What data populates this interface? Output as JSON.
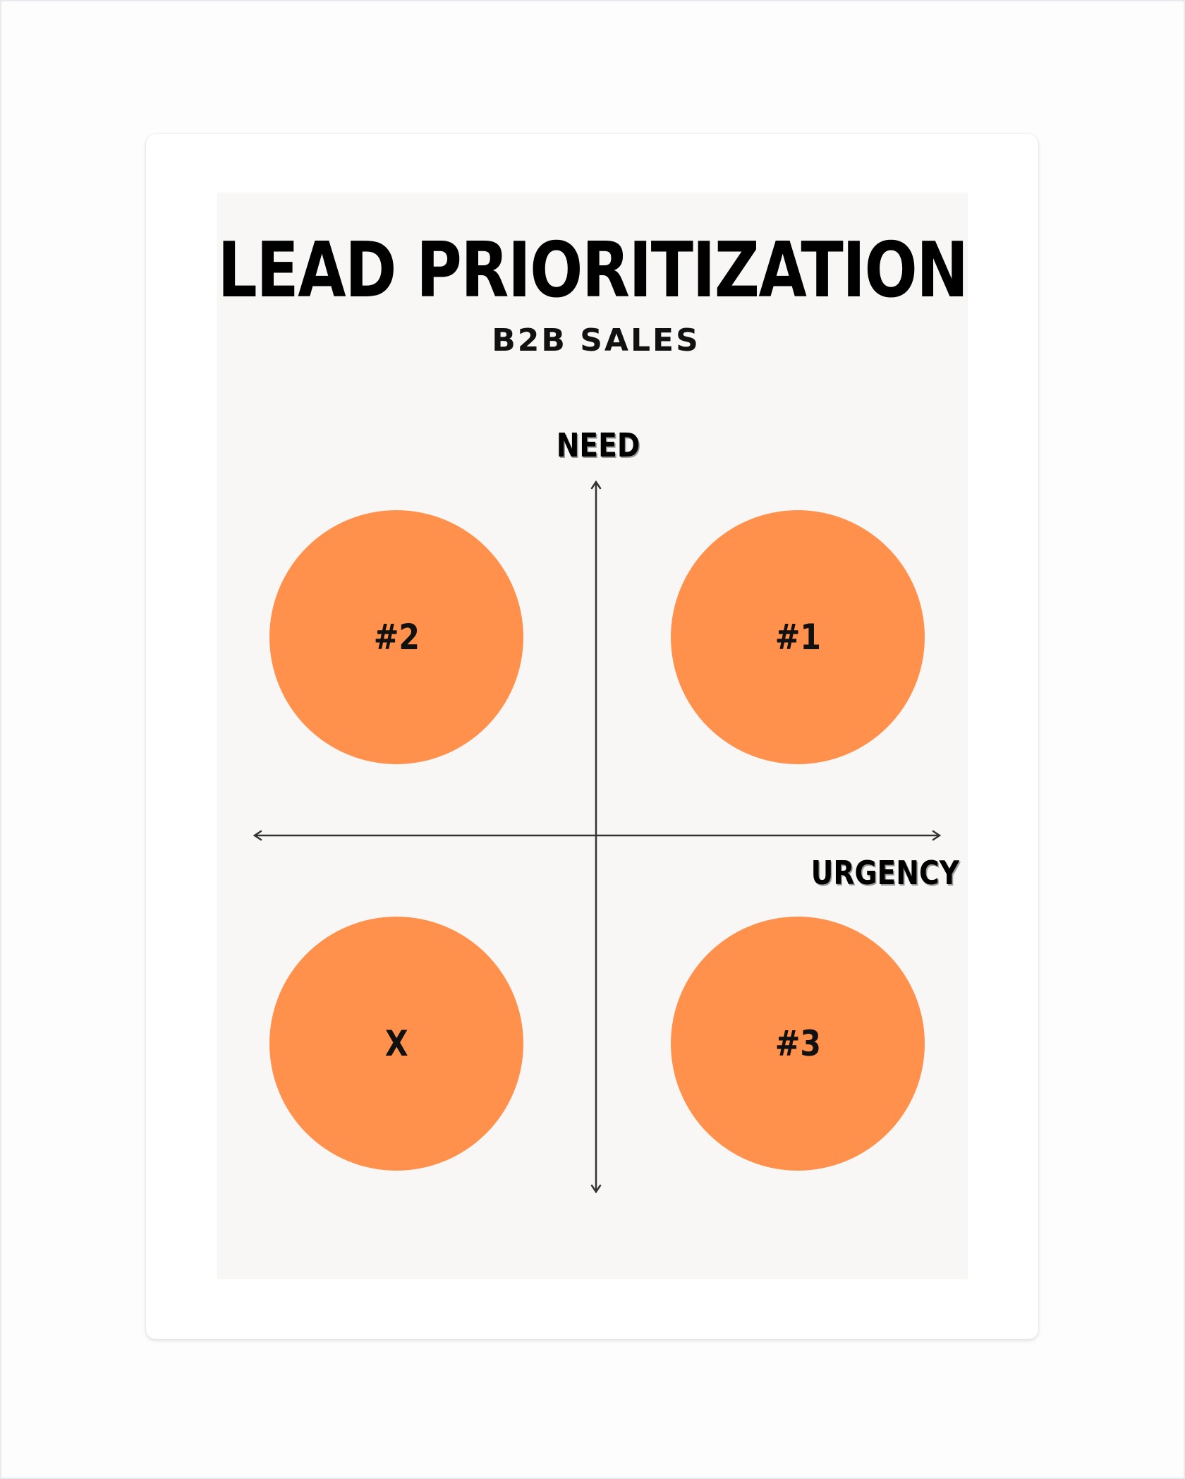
{
  "poster": {
    "title": "LEAD PRIORITIZATION",
    "subtitle": "B2B SALES",
    "background_color": "#f8f7f5"
  },
  "axes": {
    "vertical_label": "NEED",
    "horizontal_label": "URGENCY",
    "line_color": "#333333"
  },
  "quadrants": {
    "top_left": {
      "label": "#2"
    },
    "top_right": {
      "label": "#1"
    },
    "bottom_left": {
      "label": "X"
    },
    "bottom_right": {
      "label": "#3"
    },
    "circle_color": "#ff914d"
  }
}
